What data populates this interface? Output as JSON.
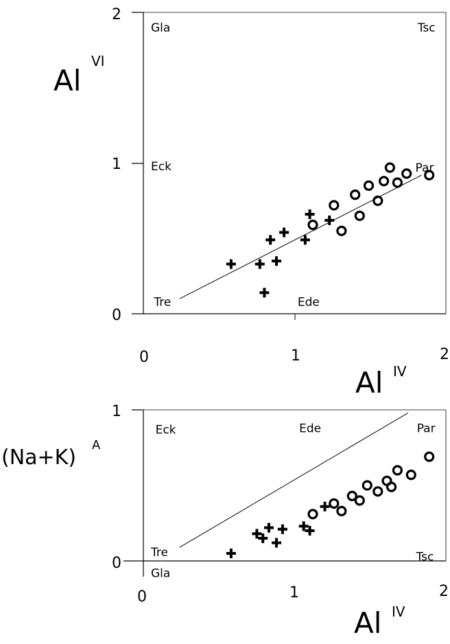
{
  "chart_data": [
    {
      "type": "scatter",
      "xlabel": "Al",
      "xlabel_sup": "IV",
      "ylabel": "Al",
      "ylabel_sup": "VI",
      "xlim": [
        0,
        2
      ],
      "ylim": [
        0,
        2
      ],
      "xticks": [
        "0",
        "1",
        "2"
      ],
      "yticks": [
        "0",
        "1",
        "2"
      ],
      "endmember_labels": [
        {
          "text": "Gla",
          "x": 0.05,
          "y": 1.9
        },
        {
          "text": "Tsc",
          "x": 1.93,
          "y": 1.9
        },
        {
          "text": "Eck",
          "x": 0.05,
          "y": 0.98
        },
        {
          "text": "Par",
          "x": 1.92,
          "y": 0.97
        },
        {
          "text": "Tre",
          "x": 0.07,
          "y": 0.08
        },
        {
          "text": "Ede",
          "x": 1.02,
          "y": 0.08
        }
      ],
      "reference_line": {
        "x": [
          0.24,
          1.84
        ],
        "y": [
          0.1,
          0.92
        ]
      },
      "series": [
        {
          "marker": "cross",
          "x": [
            0.58,
            0.77,
            0.8,
            0.84,
            0.88,
            0.93,
            1.07,
            1.1,
            1.23
          ],
          "y": [
            0.33,
            0.33,
            0.14,
            0.49,
            0.35,
            0.54,
            0.49,
            0.66,
            0.62
          ]
        },
        {
          "marker": "circle",
          "x": [
            1.12,
            1.26,
            1.31,
            1.4,
            1.43,
            1.49,
            1.55,
            1.59,
            1.63,
            1.68,
            1.74,
            1.89
          ],
          "y": [
            0.59,
            0.72,
            0.55,
            0.79,
            0.65,
            0.85,
            0.75,
            0.88,
            0.97,
            0.87,
            0.93,
            0.92
          ]
        }
      ]
    },
    {
      "type": "scatter",
      "xlabel": "Al",
      "xlabel_sup": "IV",
      "ylabel": "(Na+K)",
      "ylabel_sup": "A",
      "xlim": [
        0,
        2
      ],
      "ylim": [
        0,
        1
      ],
      "xticks": [
        "0",
        "1",
        "2"
      ],
      "yticks": [
        "0",
        "1"
      ],
      "endmember_labels": [
        {
          "text": "Eck",
          "x": 0.08,
          "y": 0.87
        },
        {
          "text": "Ede",
          "x": 1.03,
          "y": 0.88
        },
        {
          "text": "Par",
          "x": 1.93,
          "y": 0.88
        },
        {
          "text": "Tre",
          "x": 0.05,
          "y": 0.06
        },
        {
          "text": "Tsc",
          "x": 1.92,
          "y": 0.03
        },
        {
          "text": "Gla",
          "x": 0.05,
          "y": -0.08
        }
      ],
      "reference_line": {
        "x": [
          0.24,
          1.75
        ],
        "y": [
          0.09,
          0.98
        ]
      },
      "series": [
        {
          "marker": "cross",
          "x": [
            0.58,
            0.75,
            0.79,
            0.83,
            0.88,
            0.92,
            1.06,
            1.1,
            1.2
          ],
          "y": [
            0.05,
            0.18,
            0.15,
            0.22,
            0.12,
            0.21,
            0.23,
            0.2,
            0.36
          ]
        },
        {
          "marker": "circle",
          "x": [
            1.12,
            1.26,
            1.31,
            1.38,
            1.43,
            1.48,
            1.55,
            1.61,
            1.64,
            1.68,
            1.77,
            1.89
          ],
          "y": [
            0.31,
            0.38,
            0.33,
            0.43,
            0.4,
            0.5,
            0.46,
            0.53,
            0.49,
            0.6,
            0.57,
            0.69
          ]
        }
      ]
    }
  ]
}
